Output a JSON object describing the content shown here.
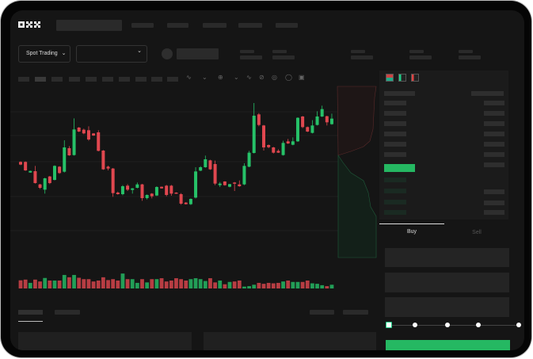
{
  "header": {
    "logo": "OKX",
    "search_placeholder": "",
    "nav_items": [
      "",
      "",
      "",
      "",
      ""
    ]
  },
  "market_bar": {
    "trading_mode": "Spot Trading",
    "pair_selector": "",
    "chevron": "chevron-down-icon"
  },
  "toolbar": {
    "intervals": 10,
    "tool_icons": [
      "indicator-icon",
      "chevron-down-icon",
      "chart-type-icon",
      "chevron-down-icon",
      "line-tool-icon",
      "draw-icon",
      "circle-tool-icon",
      "settings-icon",
      "fullscreen-icon"
    ]
  },
  "orderbook": {
    "view_icons": [
      "orderbook-both-icon",
      "orderbook-bids-icon",
      "orderbook-asks-icon"
    ]
  },
  "trade_form": {
    "tabs": [
      "Buy",
      "Sell"
    ],
    "active_tab": "Buy",
    "slider_percent": 0,
    "slider_stops": [
      0,
      25,
      50,
      75,
      100
    ]
  },
  "colors": {
    "up": "#26c168",
    "down": "#e0474f",
    "background": "#151515",
    "panel": "#1c1c1c"
  },
  "chart_data": {
    "type": "candlestick",
    "candles_ohlc": [
      [
        200,
        202,
        188,
        190
      ],
      [
        200,
        202,
        166,
        168
      ],
      [
        160,
        167,
        159,
        166
      ],
      [
        165,
        185,
        118,
        120
      ],
      [
        115,
        117,
        98,
        102
      ],
      [
        95,
        140,
        80,
        138
      ],
      [
        145,
        147,
        116,
        120
      ],
      [
        132,
        187,
        130,
        185
      ],
      [
        182,
        184,
        155,
        158
      ],
      [
        163,
        282,
        160,
        255
      ],
      [
        252,
        260,
        223,
        225
      ],
      [
        226,
        365,
        224,
        323
      ],
      [
        330,
        332,
        313,
        315
      ],
      [
        322,
        326,
        305,
        308
      ],
      [
        320,
        335,
        280,
        285
      ],
      [
        308,
        309,
        299,
        300
      ],
      [
        312,
        320,
        240,
        242
      ],
      [
        243,
        245,
        170,
        172
      ],
      [
        182,
        186,
        168,
        175
      ],
      [
        175,
        177,
        68,
        82
      ],
      [
        84,
        88,
        76,
        78
      ],
      [
        78,
        112,
        74,
        108
      ],
      [
        110,
        116,
        90,
        95
      ],
      [
        94,
        101,
        80,
        100
      ],
      [
        102,
        122,
        100,
        115
      ],
      [
        115,
        117,
        53,
        63
      ],
      [
        63,
        77,
        58,
        75
      ],
      [
        80,
        82,
        62,
        70
      ],
      [
        73,
        108,
        71,
        105
      ],
      [
        106,
        107,
        99,
        100
      ],
      [
        110,
        113,
        70,
        75
      ],
      [
        110,
        113,
        72,
        80
      ],
      [
        84,
        85,
        79,
        80
      ],
      [
        78,
        82,
        38,
        42
      ],
      [
        46,
        48,
        39,
        40
      ],
      [
        40,
        62,
        37,
        60
      ],
      [
        65,
        180,
        62,
        164
      ],
      [
        167,
        184,
        165,
        180
      ],
      [
        180,
        224,
        178,
        210
      ],
      [
        206,
        208,
        170,
        172
      ],
      [
        192,
        205,
        112,
        118
      ],
      [
        112,
        124,
        105,
        118
      ],
      [
        126,
        127,
        110,
        112
      ],
      [
        106,
        117,
        104,
        116
      ],
      [
        122,
        124,
        90,
        118
      ],
      [
        115,
        130,
        106,
        108
      ],
      [
        115,
        195,
        112,
        185
      ],
      [
        182,
        242,
        180,
        235
      ],
      [
        234,
        423,
        232,
        375
      ],
      [
        380,
        385,
        335,
        340
      ],
      [
        338,
        340,
        243,
        255
      ],
      [
        264,
        266,
        252,
        256
      ],
      [
        255,
        257,
        232,
        235
      ],
      [
        242,
        248,
        234,
        235
      ],
      [
        226,
        280,
        224,
        272
      ],
      [
        278,
        287,
        268,
        270
      ],
      [
        265,
        293,
        263,
        278
      ],
      [
        278,
        369,
        276,
        367
      ],
      [
        372,
        374,
        328,
        332
      ],
      [
        332,
        334,
        313,
        315
      ],
      [
        310,
        358,
        308,
        338
      ],
      [
        340,
        392,
        338,
        372
      ],
      [
        372,
        413,
        370,
        400
      ],
      [
        373,
        375,
        338,
        350
      ],
      [
        343,
        383,
        341,
        364
      ]
    ],
    "volume": [
      35,
      38,
      24,
      38,
      30,
      45,
      34,
      34,
      34,
      58,
      48,
      58,
      46,
      40,
      40,
      30,
      34,
      48,
      36,
      40,
      34,
      64,
      40,
      40,
      24,
      40,
      26,
      40,
      40,
      44,
      30,
      34,
      44,
      40,
      34,
      40,
      44,
      40,
      32,
      44,
      26,
      34,
      18,
      28,
      30,
      34,
      8,
      10,
      16,
      24,
      20,
      24,
      22,
      24,
      30,
      34,
      28,
      28,
      28,
      34,
      22,
      20,
      14,
      10,
      16
    ]
  }
}
